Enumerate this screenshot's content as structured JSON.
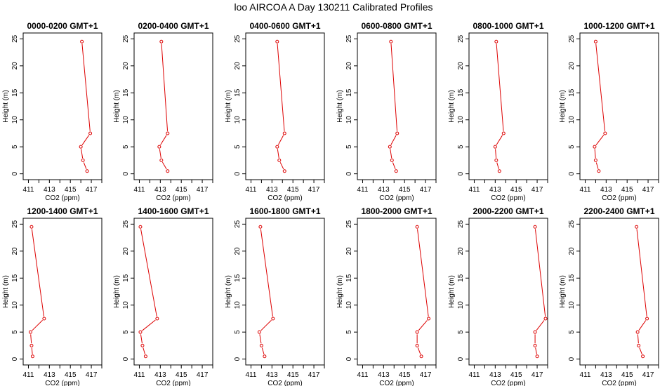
{
  "title": "loo AIRCOA A  Day 130211  Calibrated Profiles",
  "colors": {
    "profile": "#dd0000",
    "axis": "#000000"
  },
  "chart_data": [
    {
      "type": "line",
      "title": "0000-0200 GMT+1",
      "xlabel": "CO2 (ppm)",
      "ylabel": "Height (m)",
      "xlim": [
        410.5,
        418
      ],
      "ylim": [
        0,
        25
      ],
      "xticks": [
        411,
        413,
        415,
        417
      ],
      "yticks": [
        0,
        5,
        10,
        15,
        20,
        25
      ],
      "x": [
        416.6,
        416.2,
        416.0,
        416.9,
        416.1
      ],
      "y": [
        0.5,
        2.5,
        5,
        7.5,
        24.5
      ]
    },
    {
      "type": "line",
      "title": "0200-0400 GMT+1",
      "xlabel": "CO2 (ppm)",
      "ylabel": "Height (m)",
      "xlim": [
        410.5,
        418
      ],
      "ylim": [
        0,
        25
      ],
      "xticks": [
        411,
        413,
        415,
        417
      ],
      "yticks": [
        0,
        5,
        10,
        15,
        20,
        25
      ],
      "x": [
        413.7,
        413.1,
        412.9,
        413.7,
        413.1
      ],
      "y": [
        0.5,
        2.5,
        5,
        7.5,
        24.5
      ]
    },
    {
      "type": "line",
      "title": "0400-0600 GMT+1",
      "xlabel": "CO2 (ppm)",
      "ylabel": "Height (m)",
      "xlim": [
        410.5,
        418
      ],
      "ylim": [
        0,
        25
      ],
      "xticks": [
        411,
        413,
        415,
        417
      ],
      "yticks": [
        0,
        5,
        10,
        15,
        20,
        25
      ],
      "x": [
        414.2,
        413.7,
        413.5,
        414.2,
        413.5
      ],
      "y": [
        0.5,
        2.5,
        5,
        7.5,
        24.5
      ]
    },
    {
      "type": "line",
      "title": "0600-0800 GMT+1",
      "xlabel": "CO2 (ppm)",
      "ylabel": "Height (m)",
      "xlim": [
        410.5,
        418
      ],
      "ylim": [
        0,
        25
      ],
      "xticks": [
        411,
        413,
        415,
        417
      ],
      "yticks": [
        0,
        5,
        10,
        15,
        20,
        25
      ],
      "x": [
        414.2,
        413.8,
        413.6,
        414.3,
        413.7
      ],
      "y": [
        0.5,
        2.5,
        5,
        7.5,
        24.5
      ]
    },
    {
      "type": "line",
      "title": "0800-1000 GMT+1",
      "xlabel": "CO2 (ppm)",
      "ylabel": "Height (m)",
      "xlim": [
        410.5,
        418
      ],
      "ylim": [
        0,
        25
      ],
      "xticks": [
        411,
        413,
        415,
        417
      ],
      "yticks": [
        0,
        5,
        10,
        15,
        20,
        25
      ],
      "x": [
        413.4,
        413.1,
        413.0,
        413.8,
        413.1
      ],
      "y": [
        0.5,
        2.5,
        5,
        7.5,
        24.5
      ]
    },
    {
      "type": "line",
      "title": "1000-1200 GMT+1",
      "xlabel": "CO2 (ppm)",
      "ylabel": "Height (m)",
      "xlim": [
        410.5,
        418
      ],
      "ylim": [
        0,
        25
      ],
      "xticks": [
        411,
        413,
        415,
        417
      ],
      "yticks": [
        0,
        5,
        10,
        15,
        20,
        25
      ],
      "x": [
        412.3,
        412.0,
        411.9,
        412.9,
        412.0
      ],
      "y": [
        0.5,
        2.5,
        5,
        7.5,
        24.5
      ]
    },
    {
      "type": "line",
      "title": "1200-1400 GMT+1",
      "xlabel": "CO2 (ppm)",
      "ylabel": "Height (m)",
      "xlim": [
        410.5,
        418
      ],
      "ylim": [
        0,
        25
      ],
      "xticks": [
        411,
        413,
        415,
        417
      ],
      "yticks": [
        0,
        5,
        10,
        15,
        20,
        25
      ],
      "x": [
        411.4,
        411.3,
        411.2,
        412.5,
        411.3
      ],
      "y": [
        0.5,
        2.5,
        5,
        7.5,
        24.5
      ]
    },
    {
      "type": "line",
      "title": "1400-1600 GMT+1",
      "xlabel": "CO2 (ppm)",
      "ylabel": "Height (m)",
      "xlim": [
        410.5,
        418
      ],
      "ylim": [
        0,
        25
      ],
      "xticks": [
        411,
        413,
        415,
        417
      ],
      "yticks": [
        0,
        5,
        10,
        15,
        20,
        25
      ],
      "x": [
        411.6,
        411.3,
        411.1,
        412.7,
        411.1
      ],
      "y": [
        0.5,
        2.5,
        5,
        7.5,
        24.5
      ]
    },
    {
      "type": "line",
      "title": "1600-1800 GMT+1",
      "xlabel": "CO2 (ppm)",
      "ylabel": "Height (m)",
      "xlim": [
        410.5,
        418
      ],
      "ylim": [
        0,
        25
      ],
      "xticks": [
        411,
        413,
        415,
        417
      ],
      "yticks": [
        0,
        5,
        10,
        15,
        20,
        25
      ],
      "x": [
        412.3,
        412.0,
        411.8,
        413.1,
        411.9
      ],
      "y": [
        0.5,
        2.5,
        5,
        7.5,
        24.5
      ]
    },
    {
      "type": "line",
      "title": "1800-2000 GMT+1",
      "xlabel": "CO2 (ppm)",
      "ylabel": "Height (m)",
      "xlim": [
        410.5,
        418
      ],
      "ylim": [
        0,
        25
      ],
      "xticks": [
        411,
        413,
        415,
        417
      ],
      "yticks": [
        0,
        5,
        10,
        15,
        20,
        25
      ],
      "x": [
        416.6,
        416.2,
        416.2,
        417.3,
        416.2
      ],
      "y": [
        0.5,
        2.5,
        5,
        7.5,
        24.5
      ]
    },
    {
      "type": "line",
      "title": "2000-2200 GMT+1",
      "xlabel": "CO2 (ppm)",
      "ylabel": "Height (m)",
      "xlim": [
        410.5,
        418
      ],
      "ylim": [
        0,
        25
      ],
      "xticks": [
        411,
        413,
        415,
        417
      ],
      "yticks": [
        0,
        5,
        10,
        15,
        20,
        25
      ],
      "x": [
        417.0,
        416.8,
        416.8,
        417.8,
        416.8
      ],
      "y": [
        0.5,
        2.5,
        5,
        7.5,
        24.5
      ]
    },
    {
      "type": "line",
      "title": "2200-2400 GMT+1",
      "xlabel": "CO2 (ppm)",
      "ylabel": "Height (m)",
      "xlim": [
        410.5,
        418
      ],
      "ylim": [
        0,
        25
      ],
      "xticks": [
        411,
        413,
        415,
        417
      ],
      "yticks": [
        0,
        5,
        10,
        15,
        20,
        25
      ],
      "x": [
        416.5,
        416.1,
        416.0,
        416.9,
        415.9
      ],
      "y": [
        0.5,
        2.5,
        5,
        7.5,
        24.5
      ]
    }
  ]
}
